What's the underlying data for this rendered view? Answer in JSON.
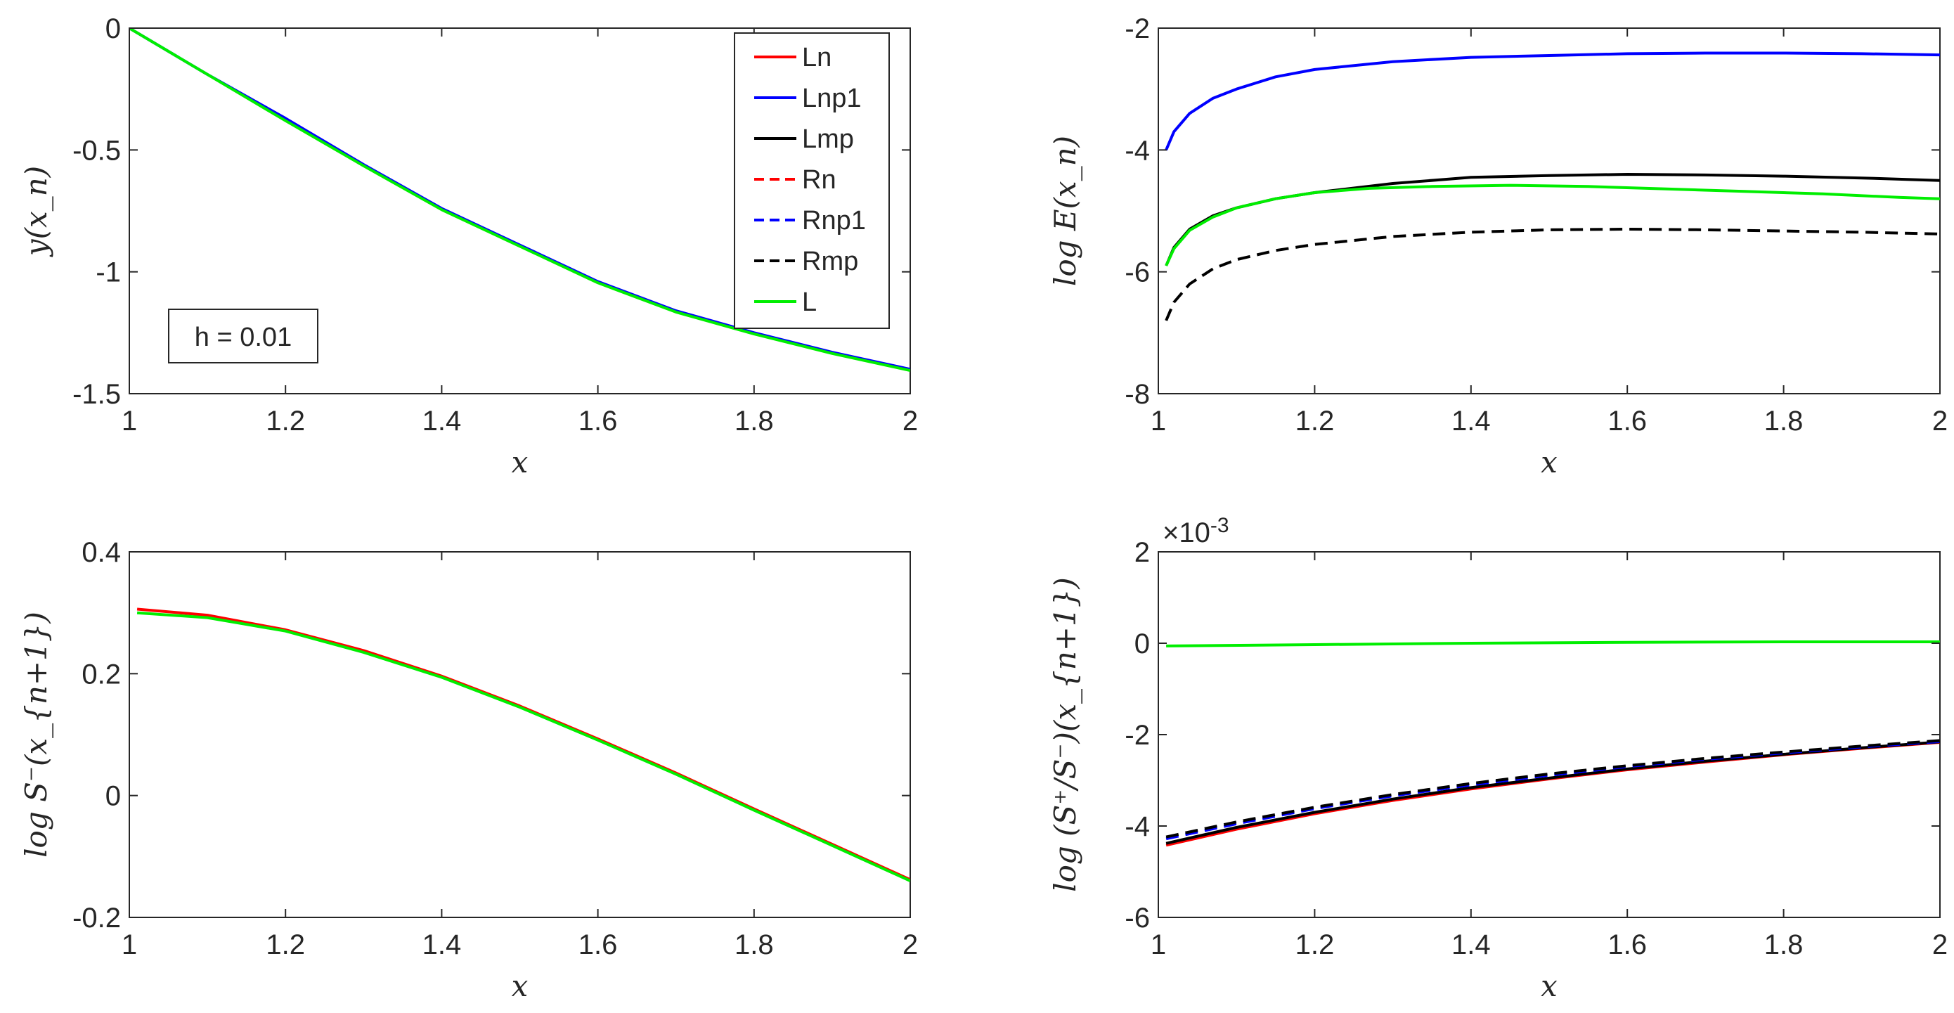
{
  "chart_data": [
    {
      "id": "p1",
      "type": "line",
      "xlabel": "x",
      "ylabel": "y(x_n)",
      "xlim": [
        1,
        2
      ],
      "ylim": [
        -1.5,
        0
      ],
      "xticks": [
        1,
        1.2,
        1.4,
        1.6,
        1.8,
        2
      ],
      "xtick_labels": [
        "1",
        "1.2",
        "1.4",
        "1.6",
        "1.8",
        "2"
      ],
      "yticks": [
        -1.5,
        -1,
        -0.5,
        0
      ],
      "ytick_labels": [
        "-1.5",
        "-1",
        "-0.5",
        "0"
      ],
      "annotation": "h = 0.01",
      "legend": {
        "position": "top-right",
        "entries": [
          {
            "label": "Ln",
            "color": "#ff0000",
            "style": "solid"
          },
          {
            "label": "Lnp1",
            "color": "#0000ff",
            "style": "solid"
          },
          {
            "label": "Lmp",
            "color": "#000000",
            "style": "solid"
          },
          {
            "label": "Rn",
            "color": "#ff0000",
            "style": "dashed"
          },
          {
            "label": "Rnp1",
            "color": "#0000ff",
            "style": "dashed"
          },
          {
            "label": "Rmp",
            "color": "#000000",
            "style": "dashed"
          },
          {
            "label": "L",
            "color": "#00ee00",
            "style": "solid"
          }
        ]
      },
      "series": [
        {
          "name": "Lnp1",
          "color": "#0000ff",
          "style": "solid",
          "x": [
            1,
            1.1,
            1.2,
            1.3,
            1.4,
            1.5,
            1.6,
            1.7,
            1.8,
            1.9,
            2
          ],
          "y": [
            0,
            -0.19,
            -0.37,
            -0.56,
            -0.74,
            -0.89,
            -1.04,
            -1.16,
            -1.25,
            -1.33,
            -1.4
          ]
        },
        {
          "name": "L",
          "color": "#00ee00",
          "style": "solid",
          "x": [
            1,
            1.1,
            1.2,
            1.3,
            1.4,
            1.5,
            1.6,
            1.7,
            1.8,
            1.9,
            2
          ],
          "y": [
            0,
            -0.19,
            -0.38,
            -0.565,
            -0.745,
            -0.895,
            -1.045,
            -1.165,
            -1.255,
            -1.335,
            -1.405
          ]
        }
      ]
    },
    {
      "id": "p2",
      "type": "line",
      "xlabel": "x",
      "ylabel": "log E(x_n)",
      "xlim": [
        1,
        2
      ],
      "ylim": [
        -8,
        -2
      ],
      "xticks": [
        1,
        1.2,
        1.4,
        1.6,
        1.8,
        2
      ],
      "xtick_labels": [
        "1",
        "1.2",
        "1.4",
        "1.6",
        "1.8",
        "2"
      ],
      "yticks": [
        -8,
        -6,
        -4,
        -2
      ],
      "ytick_labels": [
        "-8",
        "-6",
        "-4",
        "-2"
      ],
      "series": [
        {
          "name": "Lnp1",
          "color": "#0000ff",
          "style": "solid",
          "x": [
            1.01,
            1.02,
            1.04,
            1.07,
            1.1,
            1.15,
            1.2,
            1.3,
            1.4,
            1.5,
            1.6,
            1.7,
            1.8,
            1.9,
            2
          ],
          "y": [
            -4.0,
            -3.7,
            -3.4,
            -3.15,
            -3.0,
            -2.8,
            -2.68,
            -2.55,
            -2.48,
            -2.45,
            -2.42,
            -2.41,
            -2.41,
            -2.42,
            -2.44
          ]
        },
        {
          "name": "Lmp",
          "color": "#000000",
          "style": "solid",
          "x": [
            1.01,
            1.02,
            1.04,
            1.07,
            1.1,
            1.15,
            1.2,
            1.3,
            1.4,
            1.5,
            1.6,
            1.7,
            1.8,
            1.9,
            2
          ],
          "y": [
            -5.9,
            -5.6,
            -5.3,
            -5.08,
            -4.95,
            -4.8,
            -4.7,
            -4.55,
            -4.45,
            -4.42,
            -4.4,
            -4.41,
            -4.43,
            -4.46,
            -4.5
          ]
        },
        {
          "name": "Rmp",
          "color": "#000000",
          "style": "dashed",
          "x": [
            1.01,
            1.02,
            1.04,
            1.07,
            1.1,
            1.15,
            1.2,
            1.3,
            1.4,
            1.5,
            1.6,
            1.7,
            1.8,
            1.9,
            2
          ],
          "y": [
            -6.8,
            -6.5,
            -6.2,
            -5.95,
            -5.8,
            -5.65,
            -5.55,
            -5.42,
            -5.35,
            -5.31,
            -5.3,
            -5.31,
            -5.33,
            -5.35,
            -5.38
          ]
        },
        {
          "name": "L",
          "color": "#00ee00",
          "style": "solid",
          "x": [
            1.01,
            1.02,
            1.04,
            1.07,
            1.1,
            1.15,
            1.2,
            1.27,
            1.35,
            1.45,
            1.55,
            1.65,
            1.75,
            1.85,
            1.95,
            2
          ],
          "y": [
            -5.9,
            -5.62,
            -5.32,
            -5.1,
            -4.95,
            -4.8,
            -4.7,
            -4.63,
            -4.6,
            -4.58,
            -4.6,
            -4.64,
            -4.68,
            -4.72,
            -4.78,
            -4.8
          ]
        }
      ]
    },
    {
      "id": "p3",
      "type": "line",
      "xlabel": "x",
      "ylabel": "log S⁻(x_{n+1})",
      "xlim": [
        1,
        2
      ],
      "ylim": [
        -0.2,
        0.4
      ],
      "xticks": [
        1,
        1.2,
        1.4,
        1.6,
        1.8,
        2
      ],
      "xtick_labels": [
        "1",
        "1.2",
        "1.4",
        "1.6",
        "1.8",
        "2"
      ],
      "yticks": [
        -0.2,
        0,
        0.2,
        0.4
      ],
      "ytick_labels": [
        "-0.2",
        "0",
        "0.2",
        "0.4"
      ],
      "series": [
        {
          "name": "Ln",
          "color": "#ff0000",
          "style": "solid",
          "x": [
            1.01,
            1.1,
            1.2,
            1.3,
            1.4,
            1.5,
            1.6,
            1.7,
            1.8,
            1.9,
            2
          ],
          "y": [
            0.306,
            0.296,
            0.272,
            0.238,
            0.196,
            0.147,
            0.093,
            0.037,
            -0.022,
            -0.08,
            -0.138
          ]
        },
        {
          "name": "L",
          "color": "#00ee00",
          "style": "solid",
          "x": [
            1.01,
            1.1,
            1.2,
            1.3,
            1.4,
            1.5,
            1.6,
            1.7,
            1.8,
            1.9,
            2
          ],
          "y": [
            0.3,
            0.292,
            0.27,
            0.235,
            0.194,
            0.145,
            0.091,
            0.035,
            -0.024,
            -0.082,
            -0.14
          ]
        }
      ]
    },
    {
      "id": "p4",
      "type": "line",
      "xlabel": "x",
      "ylabel": "log (S⁺/S⁻)(x_{n+1})",
      "xlim": [
        1,
        2
      ],
      "ylim": [
        -6,
        2
      ],
      "exponent_label": "×10",
      "exponent_power": "-3",
      "xticks": [
        1,
        1.2,
        1.4,
        1.6,
        1.8,
        2
      ],
      "xtick_labels": [
        "1",
        "1.2",
        "1.4",
        "1.6",
        "1.8",
        "2"
      ],
      "yticks": [
        -6,
        -4,
        -2,
        0,
        2
      ],
      "ytick_labels": [
        "-6",
        "-4",
        "-2",
        "0",
        "2"
      ],
      "series": [
        {
          "name": "Ln",
          "color": "#ff0000",
          "style": "solid",
          "x": [
            1.01,
            1.1,
            1.2,
            1.3,
            1.4,
            1.5,
            1.6,
            1.7,
            1.8,
            1.9,
            2
          ],
          "y": [
            -4.42,
            -4.07,
            -3.73,
            -3.44,
            -3.19,
            -2.97,
            -2.77,
            -2.6,
            -2.44,
            -2.3,
            -2.17
          ]
        },
        {
          "name": "Lmp",
          "color": "#000000",
          "style": "solid",
          "x": [
            1.01,
            1.1,
            1.2,
            1.3,
            1.4,
            1.5,
            1.6,
            1.7,
            1.8,
            1.9,
            2
          ],
          "y": [
            -4.38,
            -4.03,
            -3.7,
            -3.41,
            -3.16,
            -2.95,
            -2.75,
            -2.58,
            -2.43,
            -2.29,
            -2.16
          ]
        },
        {
          "name": "Rnp1",
          "color": "#0000ff",
          "style": "dashed",
          "x": [
            1.01,
            1.1,
            1.2,
            1.3,
            1.4,
            1.5,
            1.6,
            1.7,
            1.8,
            1.9,
            2
          ],
          "y": [
            -4.28,
            -3.95,
            -3.62,
            -3.34,
            -3.1,
            -2.89,
            -2.7,
            -2.54,
            -2.4,
            -2.27,
            -2.15
          ]
        },
        {
          "name": "Rmp",
          "color": "#000000",
          "style": "dashed",
          "x": [
            1.01,
            1.1,
            1.2,
            1.3,
            1.4,
            1.5,
            1.6,
            1.7,
            1.8,
            1.9,
            2
          ],
          "y": [
            -4.24,
            -3.91,
            -3.59,
            -3.31,
            -3.07,
            -2.86,
            -2.68,
            -2.52,
            -2.38,
            -2.25,
            -2.13
          ]
        },
        {
          "name": "L",
          "color": "#00ee00",
          "style": "solid",
          "x": [
            1.01,
            1.2,
            1.4,
            1.6,
            1.8,
            2
          ],
          "y": [
            -0.06,
            -0.03,
            0.0,
            0.02,
            0.03,
            0.03
          ]
        }
      ]
    }
  ]
}
